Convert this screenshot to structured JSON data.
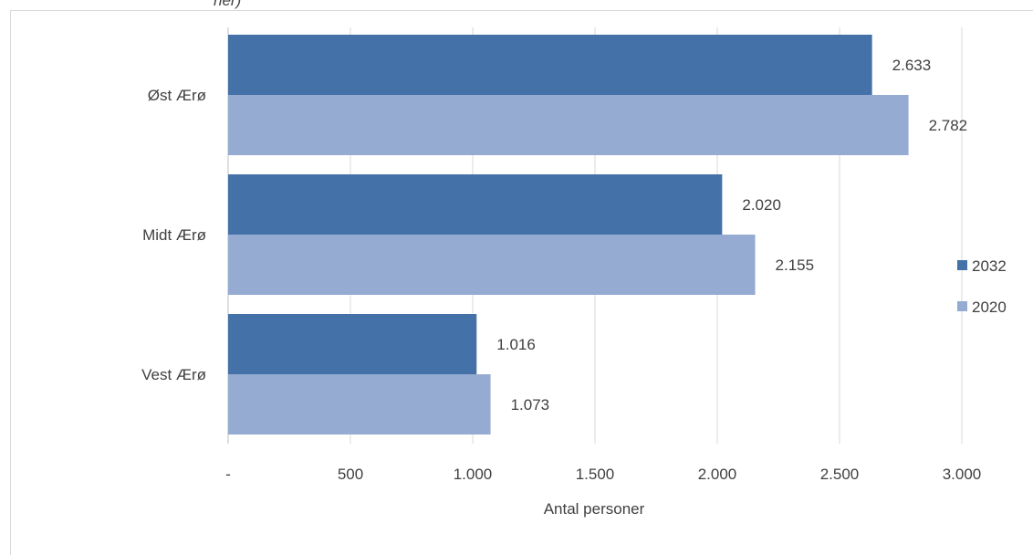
{
  "chart_data": {
    "type": "bar",
    "orientation": "horizontal",
    "title_fragment": "ner)",
    "categories": [
      "Øst Ærø",
      "Midt Ærø",
      "Vest Ærø"
    ],
    "series": [
      {
        "name": "2032",
        "color": "#4472a8",
        "values": [
          2633,
          2020,
          1016
        ],
        "labels": [
          "2.633",
          "2.020",
          "1.016"
        ]
      },
      {
        "name": "2020",
        "color": "#95abd2",
        "values": [
          2782,
          2155,
          1073
        ],
        "labels": [
          "2.782",
          "2.155",
          "1.073"
        ]
      }
    ],
    "xlabel": "Antal personer",
    "xlim": [
      0,
      3000
    ],
    "xticks": [
      0,
      500,
      1000,
      1500,
      2000,
      2500,
      3000
    ],
    "xtick_labels": [
      "-",
      "500",
      "1.000",
      "1.500",
      "2.000",
      "2.500",
      "3.000"
    ],
    "grid": "vertical",
    "legend_position": "right"
  }
}
